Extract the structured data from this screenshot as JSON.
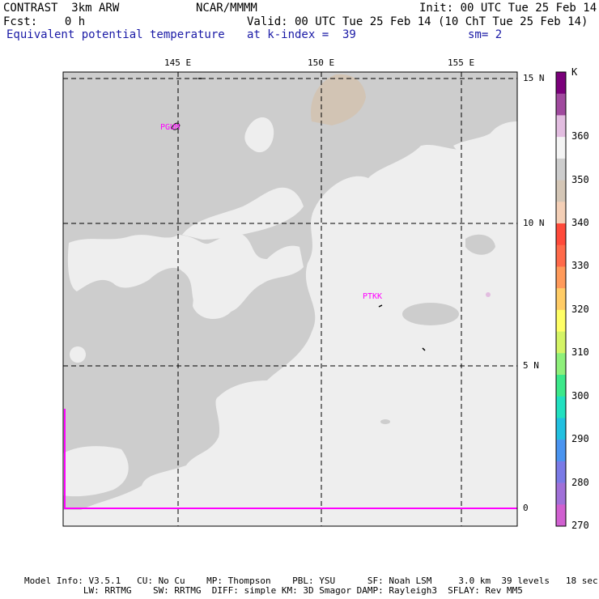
{
  "header": {
    "model": "CONTRAST  3km ARW",
    "org": "NCAR/MMMM",
    "init": "Init: 00 UTC Tue 25 Feb 14",
    "fcst": "Fcst:    0 h",
    "valid": "Valid: 00 UTC Tue 25 Feb 14 (10 ChT Tue 25 Feb 14)",
    "field": "Equivalent potential temperature",
    "level": "at k-index =  39",
    "smooth": "sm= 2"
  },
  "map": {
    "lon_labels": [
      "145 E",
      "150 E",
      "155 E"
    ],
    "lat_labels": [
      "15 N",
      "10 N",
      "5 N",
      "0"
    ],
    "stations": [
      "PGUM",
      "PTKK"
    ],
    "colors": {
      "land_gray": "#cdcdcd",
      "light": "#eeeeee",
      "tan": "#d2c4b4",
      "boundary": "#ff00ff",
      "station": "#ff00ff"
    }
  },
  "legend": {
    "unit": "K",
    "labels": [
      "360",
      "350",
      "340",
      "330",
      "320",
      "310",
      "300",
      "290",
      "280",
      "270"
    ],
    "colors": [
      "#7a007a",
      "#a04a9e",
      "#e2bde0",
      "#f4f4f4",
      "#cdcdcd",
      "#d4c6b6",
      "#f4cfb6",
      "#ff4a3a",
      "#ff6a4a",
      "#ff9a5a",
      "#ffcc66",
      "#ffff66",
      "#d4f466",
      "#8ef07a",
      "#3ce88a",
      "#22e0c0",
      "#22c0e0",
      "#4a94f0",
      "#7a7ae6",
      "#a070d8",
      "#d060d0"
    ]
  },
  "footer": {
    "line1": "Model Info: V3.5.1   CU: No Cu    MP: Thompson    PBL: YSU      SF: Noah LSM     3.0 km  39 levels   18 sec",
    "line2": "           LW: RRTMG    SW: RRTMG  DIFF: simple KM: 3D Smagor DAMP: Rayleigh3  SFLAY: Rev MM5"
  }
}
